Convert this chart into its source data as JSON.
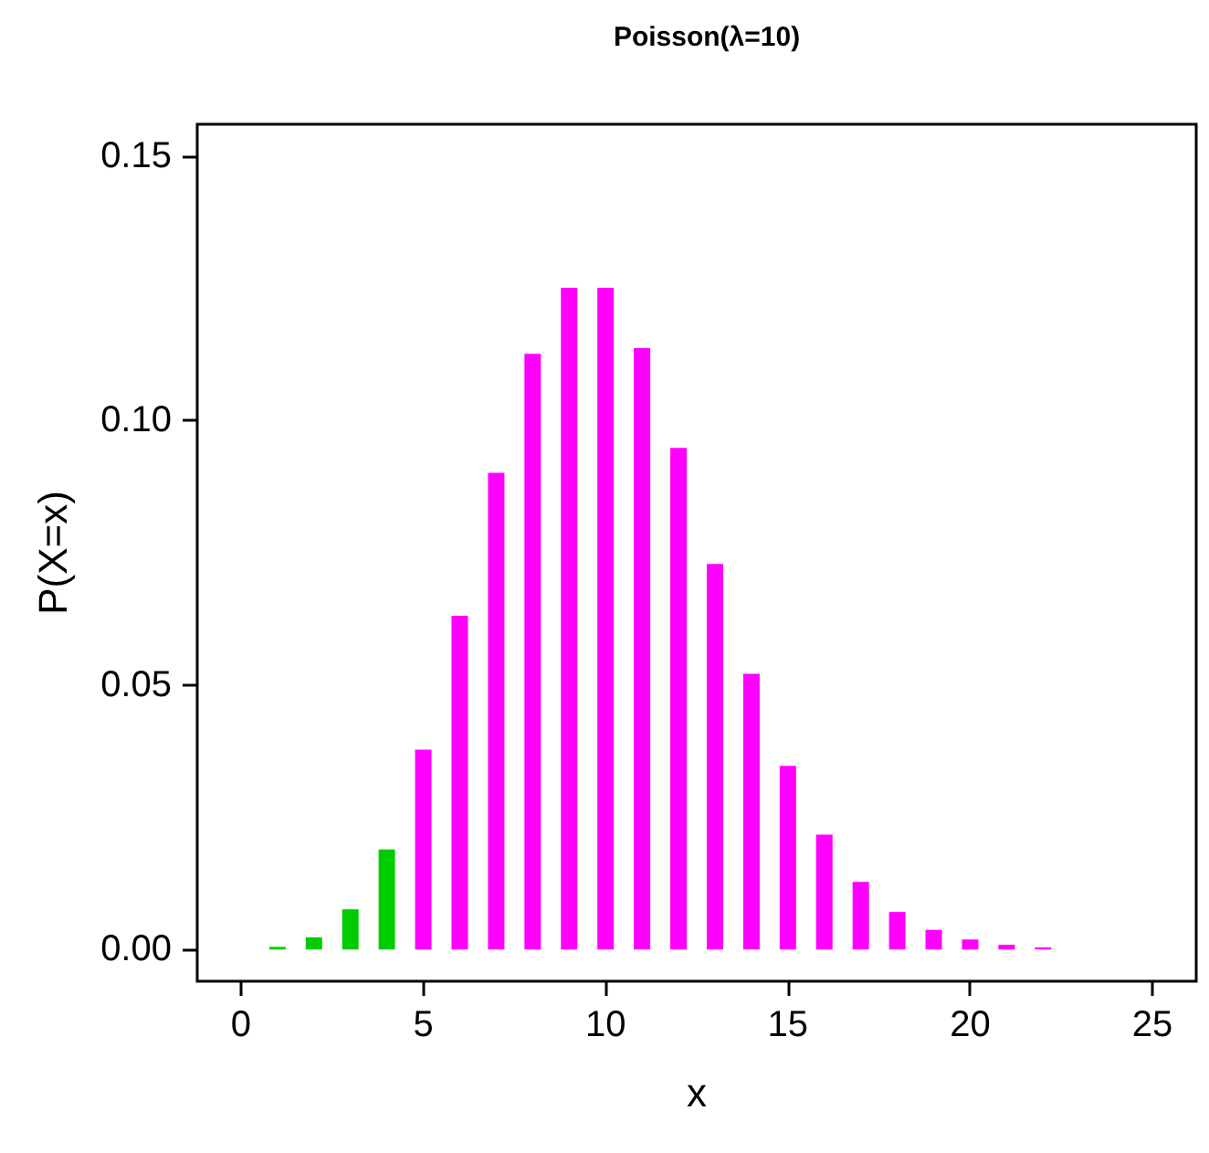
{
  "chart_data": {
    "type": "bar",
    "title": "Poisson(λ=10)",
    "xlabel": "x",
    "ylabel": "P(X=x)",
    "x": [
      0,
      1,
      2,
      3,
      4,
      5,
      6,
      7,
      8,
      9,
      10,
      11,
      12,
      13,
      14,
      15,
      16,
      17,
      18,
      19,
      20,
      21,
      22
    ],
    "values": [
      0.0,
      0.0005,
      0.0023,
      0.0076,
      0.0189,
      0.0378,
      0.0631,
      0.0901,
      0.1126,
      0.1251,
      0.1251,
      0.1137,
      0.0948,
      0.0729,
      0.0521,
      0.0347,
      0.0217,
      0.0128,
      0.0071,
      0.0037,
      0.0019,
      0.0009,
      0.0004
    ],
    "colors": [
      "#00cc00",
      "#00cc00",
      "#00cc00",
      "#00cc00",
      "#00cc00",
      "#ff00ff",
      "#ff00ff",
      "#ff00ff",
      "#ff00ff",
      "#ff00ff",
      "#ff00ff",
      "#ff00ff",
      "#ff00ff",
      "#ff00ff",
      "#ff00ff",
      "#ff00ff",
      "#ff00ff",
      "#ff00ff",
      "#ff00ff",
      "#ff00ff",
      "#ff00ff",
      "#ff00ff",
      "#ff00ff"
    ],
    "xlim": [
      -1.2,
      26.2
    ],
    "xticks": [
      0,
      5,
      10,
      15,
      20,
      25
    ],
    "ylim": [
      -0.006,
      0.156
    ],
    "yticks": [
      {
        "value": 0,
        "label": "0.00"
      },
      {
        "value": 0.05,
        "label": "0.05"
      },
      {
        "value": 0.1,
        "label": "0.10"
      },
      {
        "value": 0.15,
        "label": "0.15"
      }
    ],
    "grid": false
  }
}
